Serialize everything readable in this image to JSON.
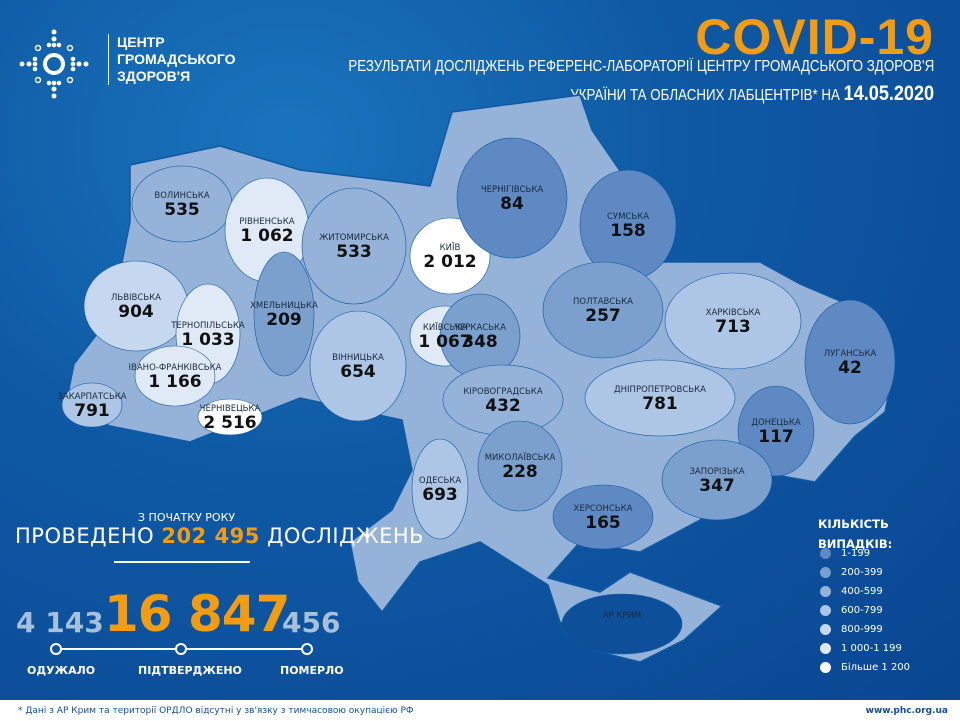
{
  "header": {
    "org_lines": [
      "ЦЕНТР",
      "ГРОМАДСЬКОГО",
      "ЗДОРОВ'Я"
    ],
    "title": "COVID-19",
    "subtitle_line1": "РЕЗУЛЬТАТИ ДОСЛІДЖЕНЬ РЕФЕРЕНС-ЛАБОРАТОРІЇ ЦЕНТРУ ГРОМАДСЬКОГО ЗДОРОВ'Я",
    "subtitle_line2": "УКРАЇНИ ТА ОБЛАСНИХ ЛАБЦЕНТРІВ* НА",
    "date": "14.05.2020"
  },
  "regions": [
    {
      "name": "ВОЛИНСЬКА",
      "value": "535"
    },
    {
      "name": "РІВНЕНСЬКА",
      "value": "1 062"
    },
    {
      "name": "ЖИТОМИРСЬКА",
      "value": "533"
    },
    {
      "name": "КИЇВ",
      "value": "2 012"
    },
    {
      "name": "ЧЕРНІГІВСЬКА",
      "value": "84"
    },
    {
      "name": "СУМСЬКА",
      "value": "158"
    },
    {
      "name": "ЛЬВІВСЬКА",
      "value": "904"
    },
    {
      "name": "ТЕРНОПІЛЬСЬКА",
      "value": "1 033"
    },
    {
      "name": "ХМЕЛЬНИЦЬКА",
      "value": "209"
    },
    {
      "name": "КИЇВСЬКА",
      "value": "1 067"
    },
    {
      "name": "ЧЕРКАСЬКА",
      "value": "348"
    },
    {
      "name": "ПОЛТАВСЬКА",
      "value": "257"
    },
    {
      "name": "ХАРКІВСЬКА",
      "value": "713"
    },
    {
      "name": "ЛУГАНСЬКА",
      "value": "42"
    },
    {
      "name": "ІВАНО-ФРАНКІВСЬКА",
      "value": "1 166"
    },
    {
      "name": "ЗАКАРПАТСЬКА",
      "value": "791"
    },
    {
      "name": "ВІННИЦЬКА",
      "value": "654"
    },
    {
      "name": "ЧЕРНІВЕЦЬКА",
      "value": "2 516"
    },
    {
      "name": "КІРОВОГРАДСЬКА",
      "value": "432"
    },
    {
      "name": "ДНІПРОПЕТРОВСЬКА",
      "value": "781"
    },
    {
      "name": "ДОНЕЦЬКА",
      "value": "117"
    },
    {
      "name": "МИКОЛАЇВСЬКА",
      "value": "228"
    },
    {
      "name": "ОДЕСЬКА",
      "value": "693"
    },
    {
      "name": "ЗАПОРІЗЬКА",
      "value": "347"
    },
    {
      "name": "ХЕРСОНСЬКА",
      "value": "165"
    },
    {
      "name": "АР КРИМ",
      "value": ""
    }
  ],
  "summary": {
    "since_label": "З ПОЧАТКУ РОКУ",
    "tests_prefix": "ПРОВЕДЕНО",
    "tests_value": "202 495",
    "tests_suffix": "ДОСЛІДЖЕНЬ",
    "recovered": "4 143",
    "confirmed": "16 847",
    "deaths": "456",
    "recovered_label": "ОДУЖАЛО",
    "confirmed_label": "ПІДТВЕРДЖЕНО",
    "deaths_label": "ПОМЕРЛО"
  },
  "legend": {
    "title_line1": "КІЛЬКІСТЬ",
    "title_line2": "ВИПАДКІВ:",
    "items": [
      {
        "label": "1-199",
        "color": "#5e89c2"
      },
      {
        "label": "200-399",
        "color": "#7ba0ce"
      },
      {
        "label": "400-599",
        "color": "#95b3d9"
      },
      {
        "label": "600-799",
        "color": "#adc6e5"
      },
      {
        "label": "800-999",
        "color": "#c5d8ef"
      },
      {
        "label": "1 000-1 199",
        "color": "#e0eaf6"
      },
      {
        "label": "Більше 1 200",
        "color": "#ffffff"
      }
    ]
  },
  "footer": {
    "note": "* Дані з АР Крим та території ОРДЛО відсутні у зв'язку з тимчасовою окупацією РФ",
    "url": "www.phc.org.ua"
  },
  "colors": {
    "accent": "#f39c12",
    "background": "#0f5aa5"
  }
}
